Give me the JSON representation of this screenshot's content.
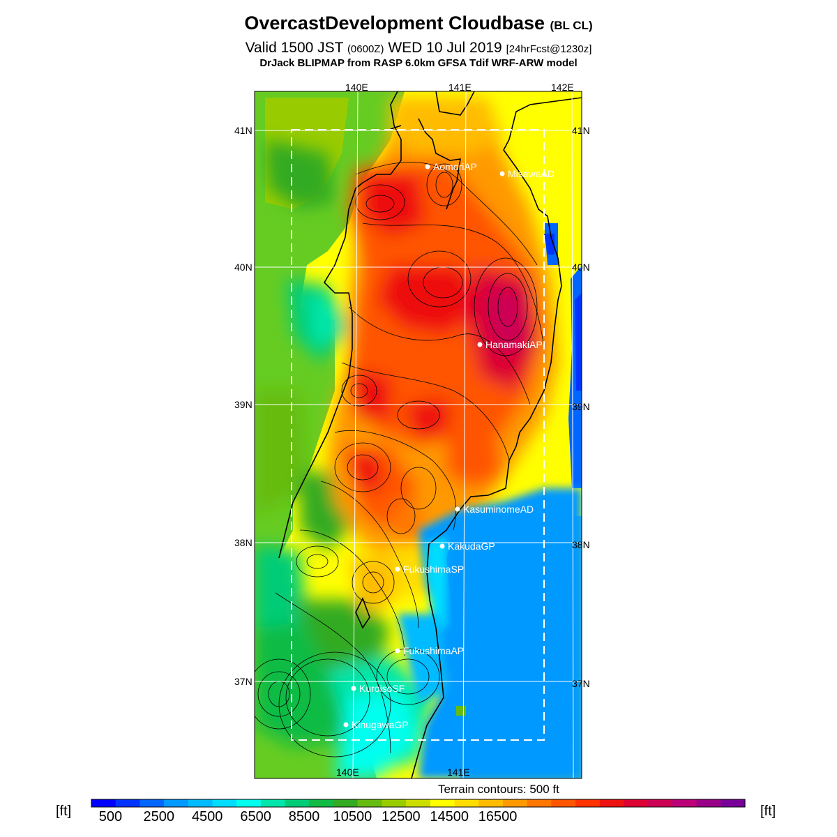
{
  "header": {
    "title": "OvercastDevelopment Cloudbase",
    "title_suffix": "(BL CL)",
    "valid_prefix": "Valid 1500 JST",
    "valid_zulu": "(0600Z)",
    "valid_date": "WED 10 Jul 2019",
    "forecast_info": "[24hrFcst@1230z]",
    "source": "DrJack BLIPMAP from RASP 6.0km GFSA Tdif WRF-ARW model"
  },
  "grid_labels": {
    "lon_top": [
      "140E",
      "141E",
      "142E"
    ],
    "lon_bottom": [
      "140E",
      "141E"
    ],
    "lat_left": [
      "41N",
      "40N",
      "39N",
      "38N",
      "37N"
    ],
    "lat_right": [
      "41N",
      "40N",
      "39N",
      "38N",
      "37N"
    ]
  },
  "locations": [
    {
      "name": "AomoriAP"
    },
    {
      "name": "MisawaAD"
    },
    {
      "name": "HanamakiAP"
    },
    {
      "name": "KasuminomeAD"
    },
    {
      "name": "KakudaGP"
    },
    {
      "name": "FukushimaSP"
    },
    {
      "name": "FukushimaAP"
    },
    {
      "name": "KuroisoSF"
    },
    {
      "name": "KinugawaGP"
    }
  ],
  "terrain_note": "Terrain contours: 500 ft",
  "colorbar": {
    "unit_label": "[ft]",
    "tick_labels": [
      "500",
      "2500",
      "4500",
      "6500",
      "8500",
      "10500",
      "12500",
      "14500",
      "16500"
    ],
    "colors": [
      "#0000ff",
      "#0033ff",
      "#0066ff",
      "#0099ff",
      "#00bbff",
      "#00ddff",
      "#00ffee",
      "#00e6aa",
      "#00cc77",
      "#11bb44",
      "#33aa22",
      "#66bb11",
      "#99cc00",
      "#ccdd00",
      "#ffff00",
      "#ffdd00",
      "#ffbb00",
      "#ff9900",
      "#ff7700",
      "#ff5500",
      "#ff3300",
      "#ee1111",
      "#dd0033",
      "#cc0055",
      "#bb0077",
      "#990088",
      "#770099"
    ]
  }
}
